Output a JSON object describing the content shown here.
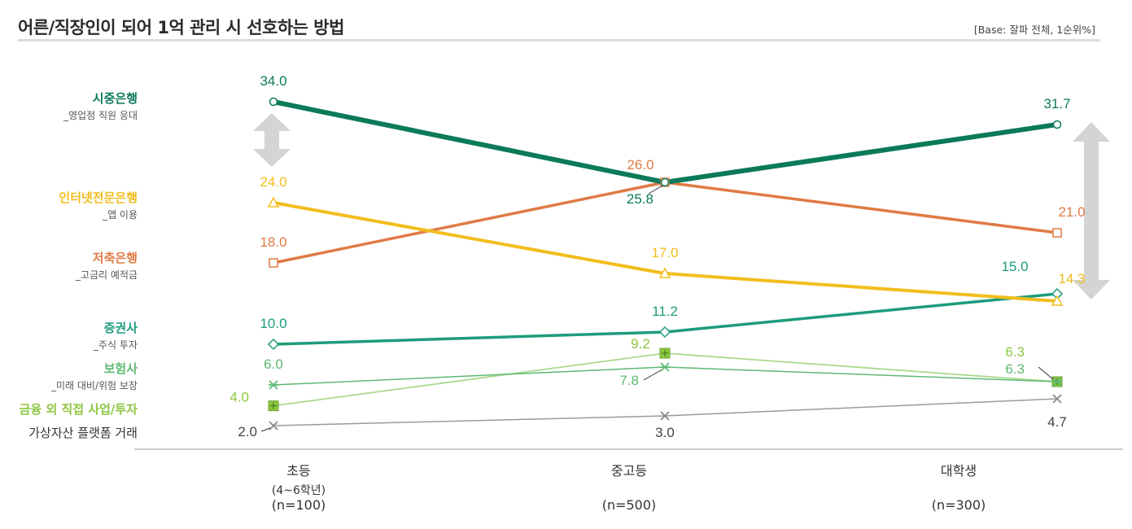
{
  "header": {
    "title": "어른/직장인이 되어 1억 관리 시 선호하는 방법",
    "base": "[Base: 잘파 전체, 1순위%]"
  },
  "x_axis": {
    "categories": [
      {
        "label": "초등",
        "sub": "(4~6학년)",
        "n": "(n=100)"
      },
      {
        "label": "중고등",
        "sub": "",
        "n": "(n=500)"
      },
      {
        "label": "대학생",
        "sub": "",
        "n": "(n=300)"
      }
    ]
  },
  "legend": [
    {
      "name": "시중은행",
      "sub": "_영업점 직원 응대",
      "color": "#0b7a5a"
    },
    {
      "name": "인터넷전문은행",
      "sub": "_앱 이용",
      "color": "#f2bd1d"
    },
    {
      "name": "저축은행",
      "sub": "_고금리 예적금",
      "color": "#e07a45"
    },
    {
      "name": "증권사",
      "sub": "_주식 투자",
      "color": "#1d9c7c"
    },
    {
      "name": "보험사",
      "sub": "_미래 대비/위험 보장",
      "color": "#5fb873"
    },
    {
      "name": "금융 외 직접 사업/투자",
      "sub": "",
      "color": "#8dc63f"
    },
    {
      "name": "가상자산 플랫폼 거래",
      "sub": "",
      "color": "#333333"
    }
  ],
  "chart_data": {
    "type": "line",
    "title": "어른/직장인이 되어 1억 관리 시 선호하는 방법",
    "xlabel": "",
    "ylabel": "",
    "categories": [
      "초등",
      "중고등",
      "대학생"
    ],
    "ylim": [
      0,
      35
    ],
    "grid": false,
    "legend_position": "left",
    "series": [
      {
        "name": "시중은행",
        "values": [
          34.0,
          25.8,
          31.7
        ],
        "labels": [
          "34.0",
          "25.8",
          "31.7"
        ],
        "color": "#0b7a5a",
        "marker": "circle"
      },
      {
        "name": "인터넷전문은행",
        "values": [
          24.0,
          17.0,
          14.3
        ],
        "labels": [
          "24.0",
          "17.0",
          "14.3"
        ],
        "color": "#f2bd1d",
        "marker": "triangle"
      },
      {
        "name": "저축은행",
        "values": [
          18.0,
          26.0,
          21.0
        ],
        "labels": [
          "18.0",
          "26.0",
          "21.0"
        ],
        "color": "#e07a45",
        "marker": "square"
      },
      {
        "name": "증권사",
        "values": [
          10.0,
          11.2,
          15.0
        ],
        "labels": [
          "10.0",
          "11.2",
          "15.0"
        ],
        "color": "#1d9c7c",
        "marker": "diamond"
      },
      {
        "name": "보험사",
        "values": [
          6.0,
          7.8,
          6.3
        ],
        "labels": [
          "6.0",
          "7.8",
          "6.3"
        ],
        "color": "#5fb873",
        "marker": "asterisk"
      },
      {
        "name": "금융 외 직접 사업/투자",
        "values": [
          4.0,
          9.2,
          6.3
        ],
        "labels": [
          "4.0",
          "9.2",
          "6.3"
        ],
        "color": "#a9d98a",
        "label_color": "#8dc63f",
        "marker": "plus"
      },
      {
        "name": "가상자산 플랫폼 거래",
        "values": [
          2.0,
          3.0,
          4.7
        ],
        "labels": [
          "2.0",
          "3.0",
          "4.7"
        ],
        "color": "#9a9a9a",
        "label_color": "#444444",
        "marker": "x"
      }
    ]
  }
}
